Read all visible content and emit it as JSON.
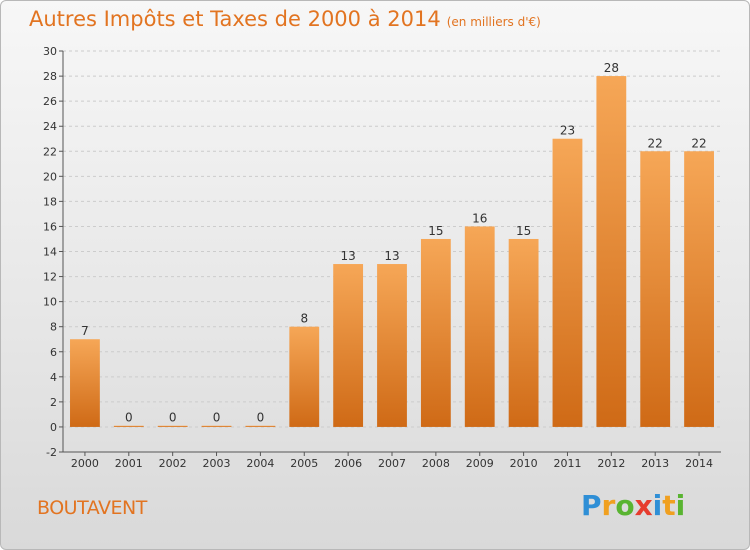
{
  "title": "Autres Impôts et Taxes de 2000 à 2014",
  "unit": "(en milliers d'€)",
  "commune": "BOUTAVENT",
  "logo": {
    "letters": [
      "P",
      "r",
      "o",
      "x",
      "i",
      "t",
      "i"
    ],
    "colors": [
      "#2f8fd6",
      "#f0a020",
      "#59b431",
      "#e63c2e",
      "#2f8fd6",
      "#f0a020",
      "#59b431"
    ]
  },
  "colors": {
    "bar_top": "#f6a757",
    "bar_bottom": "#cf6a16",
    "grid": "#cccccc",
    "axis": "#555555"
  },
  "chart_data": {
    "type": "bar",
    "categories": [
      "2000",
      "2001",
      "2002",
      "2003",
      "2004",
      "2005",
      "2006",
      "2007",
      "2008",
      "2009",
      "2010",
      "2011",
      "2012",
      "2013",
      "2014"
    ],
    "values": [
      7,
      0,
      0,
      0,
      0,
      8,
      13,
      13,
      15,
      16,
      15,
      23,
      28,
      22,
      22
    ],
    "yticks": [
      -2,
      0,
      2,
      4,
      6,
      8,
      10,
      12,
      14,
      16,
      18,
      20,
      22,
      24,
      26,
      28,
      30
    ],
    "ylim": [
      -2,
      30
    ],
    "grid": true,
    "title": "Autres Impôts et Taxes de 2000 à 2014",
    "xlabel": "",
    "ylabel": ""
  }
}
